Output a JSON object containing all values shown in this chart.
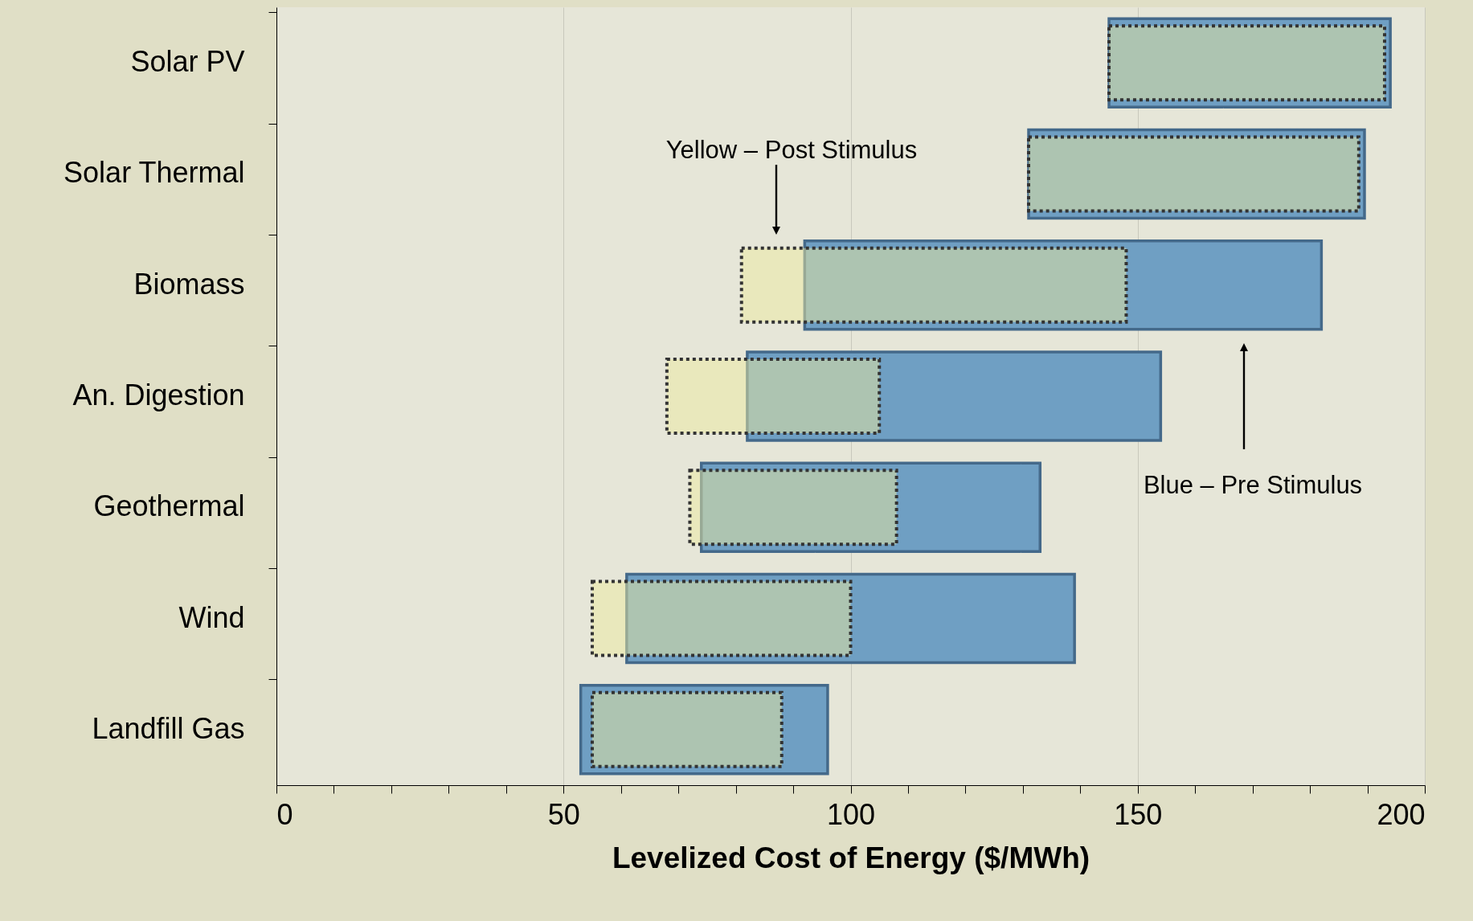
{
  "chart_data": {
    "type": "bar",
    "orientation": "horizontal",
    "xlabel": "Levelized Cost of Energy ($/MWh)",
    "categories": [
      "Solar PV",
      "Solar Thermal",
      "Biomass",
      "An. Digestion",
      "Geothermal",
      "Wind",
      "Landfill Gas"
    ],
    "series": [
      {
        "color": "#6f9fc3",
        "base": [
          145,
          131,
          92,
          82,
          74,
          61,
          53
        ],
        "values": [
          49,
          58.5,
          90,
          72,
          59,
          78,
          43
        ]
      },
      {
        "color": "#ece9a0",
        "base": [
          145,
          131,
          81,
          68,
          72,
          55,
          55
        ],
        "values": [
          48,
          57.5,
          67,
          37,
          36,
          45,
          33
        ]
      }
    ],
    "xlim": [
      0,
      200
    ],
    "xticks": [
      0,
      {
        "value": 10,
        "label": null
      },
      {
        "value": 20,
        "label": null
      },
      {
        "value": 30,
        "label": null
      },
      {
        "value": 40,
        "label": null
      },
      50,
      {
        "value": 60,
        "label": null
      },
      {
        "value": 70,
        "label": null
      },
      {
        "value": 80,
        "label": null
      },
      {
        "value": 90,
        "label": null
      },
      100,
      {
        "value": 110,
        "label": null
      },
      {
        "value": 120,
        "label": null
      },
      {
        "value": 130,
        "label": null
      },
      {
        "value": 140,
        "label": null
      },
      150,
      {
        "value": 160,
        "label": null
      },
      {
        "value": 170,
        "label": null
      },
      {
        "value": 180,
        "label": null
      },
      {
        "value": 190,
        "label": null
      },
      200
    ],
    "grid": "x",
    "annotations": [
      "Yellow – Post Stimulus",
      "Blue – Pre Stimulus"
    ]
  }
}
